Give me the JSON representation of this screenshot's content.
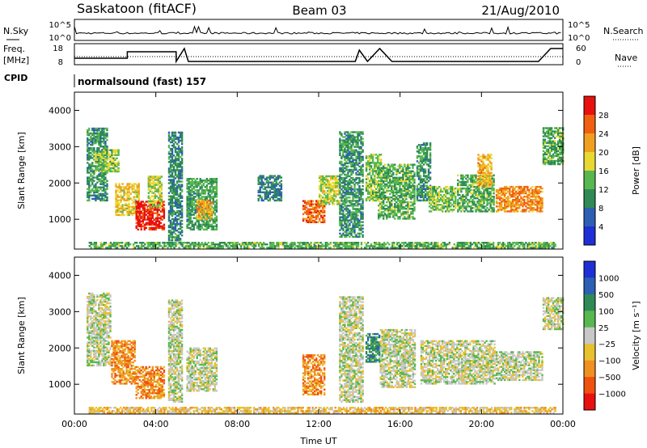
{
  "header": {
    "station": "Saskatoon (fitACF)",
    "beam": "Beam 03",
    "date": "21/Aug/2010"
  },
  "strip_labels": {
    "nsky": "N.Sky",
    "nsearch": "N.Search",
    "freq_line1": "Freq.",
    "freq_line2": "[MHz]",
    "nave": "Nave",
    "cpid": "CPID",
    "cpid_value": "normalsound (fast) 157"
  },
  "strip_ticks": {
    "noise_left": [
      "10^5",
      "10^0"
    ],
    "noise_right": [
      "10^5",
      "10^0"
    ],
    "freq_left": [
      "18",
      "8"
    ],
    "nave_right": [
      "60",
      "0"
    ]
  },
  "colors": {
    "power": [
      "#1f2fd6",
      "#2d5fb5",
      "#2f8a55",
      "#58b84f",
      "#e8d832",
      "#f0a020",
      "#f06010",
      "#e81010"
    ],
    "velocity": [
      "#e81010",
      "#f05010",
      "#f09020",
      "#e8c030",
      "#c8c8c8",
      "#58b84f",
      "#2f8a55",
      "#2d5fb5",
      "#1f2fd6"
    ]
  },
  "chart_data": [
    {
      "type": "heatmap",
      "name": "power",
      "xlabel": "Time UT",
      "ylabel": "Slant Range [km]",
      "xlim": [
        0,
        24
      ],
      "ylim": [
        180,
        4500
      ],
      "x_ticks": [
        "00:00",
        "04:00",
        "08:00",
        "12:00",
        "16:00",
        "20:00",
        "00:00"
      ],
      "y_ticks": [
        1000,
        2000,
        3000,
        4000
      ],
      "colorbar": {
        "label": "Power [dB]",
        "ticks": [
          "4",
          "8",
          "12",
          "16",
          "20",
          "24",
          "28"
        ],
        "range": [
          0,
          30
        ]
      },
      "regions": [
        {
          "t0": 0.6,
          "t1": 1.6,
          "r0": 1500,
          "r1": 3500,
          "level": 10
        },
        {
          "t0": 1.0,
          "t1": 2.2,
          "r0": 2300,
          "r1": 2900,
          "level": 14
        },
        {
          "t0": 2.0,
          "t1": 3.2,
          "r0": 1100,
          "r1": 2000,
          "level": 18
        },
        {
          "t0": 3.0,
          "t1": 4.4,
          "r0": 700,
          "r1": 1500,
          "level": 28
        },
        {
          "t0": 3.6,
          "t1": 4.3,
          "r0": 1300,
          "r1": 2200,
          "level": 16
        },
        {
          "t0": 4.6,
          "t1": 5.3,
          "r0": 400,
          "r1": 3400,
          "level": 9
        },
        {
          "t0": 5.5,
          "t1": 7.0,
          "r0": 700,
          "r1": 2100,
          "level": 11
        },
        {
          "t0": 6.0,
          "t1": 6.8,
          "r0": 1000,
          "r1": 1500,
          "level": 20
        },
        {
          "t0": 9.0,
          "t1": 10.2,
          "r0": 1500,
          "r1": 2200,
          "level": 8
        },
        {
          "t0": 11.2,
          "t1": 12.3,
          "r0": 900,
          "r1": 1500,
          "level": 24
        },
        {
          "t0": 12.0,
          "t1": 13.0,
          "r0": 1400,
          "r1": 2200,
          "level": 16
        },
        {
          "t0": 13.0,
          "t1": 14.2,
          "r0": 500,
          "r1": 3400,
          "level": 10
        },
        {
          "t0": 14.3,
          "t1": 15.1,
          "r0": 1500,
          "r1": 2800,
          "level": 14
        },
        {
          "t0": 14.9,
          "t1": 16.7,
          "r0": 1000,
          "r1": 2500,
          "level": 12
        },
        {
          "t0": 16.8,
          "t1": 17.5,
          "r0": 1500,
          "r1": 3100,
          "level": 10
        },
        {
          "t0": 17.4,
          "t1": 18.7,
          "r0": 1200,
          "r1": 1900,
          "level": 14
        },
        {
          "t0": 18.8,
          "t1": 20.6,
          "r0": 1200,
          "r1": 2200,
          "level": 12
        },
        {
          "t0": 19.8,
          "t1": 20.5,
          "r0": 1900,
          "r1": 2800,
          "level": 20
        },
        {
          "t0": 20.7,
          "t1": 23.0,
          "r0": 1200,
          "r1": 1900,
          "level": 22
        },
        {
          "t0": 23.0,
          "t1": 24.0,
          "r0": 2500,
          "r1": 3500,
          "level": 12
        },
        {
          "t0": 0.7,
          "t1": 23.6,
          "r0": 200,
          "r1": 380,
          "level": 12
        }
      ]
    },
    {
      "type": "heatmap",
      "name": "velocity",
      "xlabel": "Time UT",
      "ylabel": "Slant Range [km]",
      "xlim": [
        0,
        24
      ],
      "ylim": [
        180,
        4500
      ],
      "x_ticks": [
        "00:00",
        "04:00",
        "08:00",
        "12:00",
        "16:00",
        "20:00",
        "00:00"
      ],
      "y_ticks": [
        1000,
        2000,
        3000,
        4000
      ],
      "colorbar": {
        "label": "Velocity [m s⁻¹]",
        "ticks": [
          "1000",
          "500",
          "100",
          "25",
          "−25",
          "−100",
          "−500",
          "−1000"
        ]
      },
      "regions": [
        {
          "t0": 0.6,
          "t1": 1.8,
          "r0": 1500,
          "r1": 3500,
          "class": 4
        },
        {
          "t0": 1.8,
          "t1": 3.0,
          "r0": 1000,
          "r1": 2200,
          "class": 2
        },
        {
          "t0": 3.0,
          "t1": 4.4,
          "r0": 600,
          "r1": 1500,
          "class": 2
        },
        {
          "t0": 4.6,
          "t1": 5.3,
          "r0": 500,
          "r1": 3300,
          "class": 4
        },
        {
          "t0": 5.5,
          "t1": 7.0,
          "r0": 800,
          "r1": 2000,
          "class": 4
        },
        {
          "t0": 11.2,
          "t1": 12.3,
          "r0": 700,
          "r1": 1800,
          "class": 2
        },
        {
          "t0": 13.0,
          "t1": 14.2,
          "r0": 500,
          "r1": 3400,
          "class": 4
        },
        {
          "t0": 14.3,
          "t1": 15.0,
          "r0": 1600,
          "r1": 2400,
          "class": 6
        },
        {
          "t0": 15.0,
          "t1": 16.7,
          "r0": 900,
          "r1": 2500,
          "class": 4
        },
        {
          "t0": 17.0,
          "t1": 20.6,
          "r0": 1000,
          "r1": 2200,
          "class": 4
        },
        {
          "t0": 20.7,
          "t1": 23.0,
          "r0": 1100,
          "r1": 1900,
          "class": 4
        },
        {
          "t0": 23.0,
          "t1": 24.0,
          "r0": 2500,
          "r1": 3400,
          "class": 4
        },
        {
          "t0": 0.7,
          "t1": 23.6,
          "r0": 200,
          "r1": 380,
          "class": 3
        }
      ]
    }
  ]
}
